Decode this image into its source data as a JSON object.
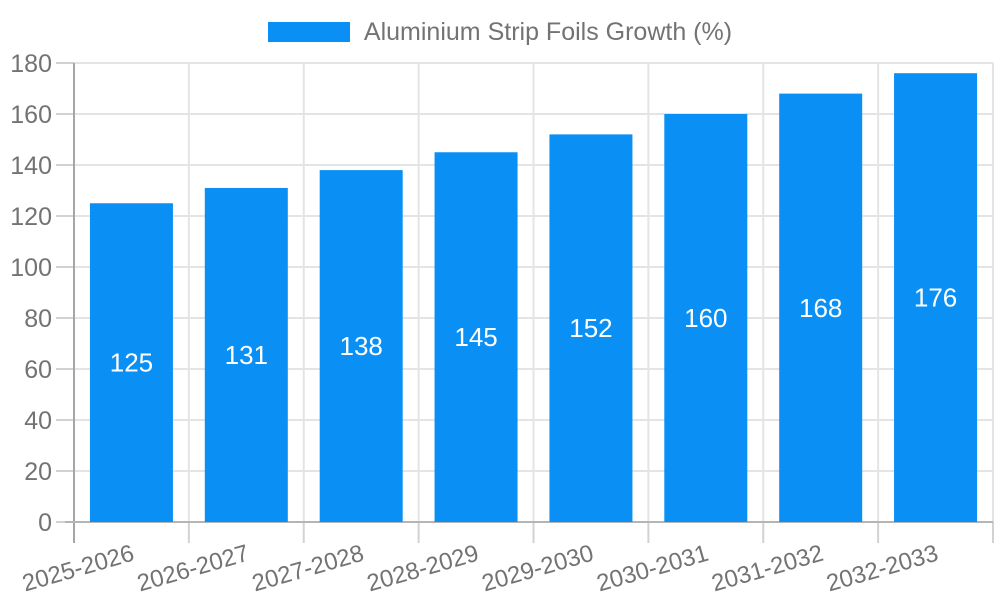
{
  "chart_data": {
    "type": "bar",
    "title": "",
    "series_name": "Aluminium Strip Foils Growth (%)",
    "categories": [
      "2025-2026",
      "2026-2027",
      "2027-2028",
      "2028-2029",
      "2029-2030",
      "2030-2031",
      "2031-2032",
      "2032-2033"
    ],
    "values": [
      125,
      131,
      138,
      145,
      152,
      160,
      168,
      176
    ],
    "xlabel": "",
    "ylabel": "",
    "ylim": [
      0,
      180
    ],
    "ytick_step": 20,
    "ytick_labels": [
      "0",
      "20",
      "40",
      "60",
      "80",
      "100",
      "120",
      "140",
      "160",
      "180"
    ],
    "grid": true,
    "legend_position": "top-center",
    "bar_value_labels_shown": true,
    "x_label_rotation_deg": -16,
    "colors": {
      "bar": "#0a90f5",
      "bar_value_label": "#ffffff",
      "tick_text": "#737373",
      "legend_text": "#737373",
      "gridline": "#e4e4e4",
      "tick_mark": "#d2d2d2",
      "y_axis_line": "#a6a6a6",
      "x_axis_line": "#b5b5b5",
      "background": "#ffffff"
    }
  }
}
